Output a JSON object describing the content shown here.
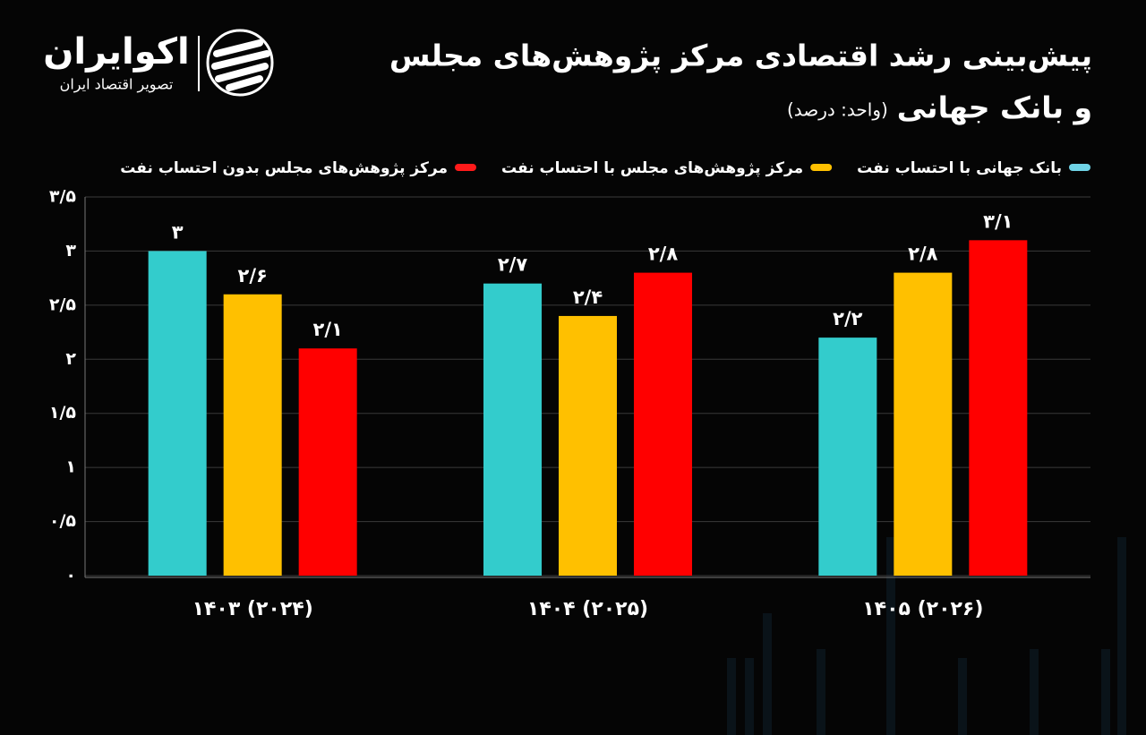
{
  "logo": {
    "name": "اکوایران",
    "tagline": "تصویر اقتصاد ایران"
  },
  "chart_data": {
    "type": "bar",
    "title_lines": [
      "پیش‌بینی رشد اقتصادی مرکز پژوهش‌های مجلس",
      "و بانک جهانی"
    ],
    "unit_note": "(واحد: درصد)",
    "categories": [
      "۱۴۰۳ (۲۰۲۴)",
      "۱۴۰۴ (۲۰۲۵)",
      "۱۴۰۵ (۲۰۲۶)"
    ],
    "series": [
      {
        "name": "بانک جهانی با احتساب نفت",
        "color": "#33cccc",
        "legend_color": "#6fd3e6",
        "values": [
          3,
          2.7,
          2.2
        ],
        "value_labels": [
          "۳",
          "۲/۷",
          "۲/۲"
        ]
      },
      {
        "name": "مرکز پژوهش‌های مجلس با احتساب نفت",
        "color": "#ffc000",
        "legend_color": "#ffc000",
        "values": [
          2.6,
          2.4,
          2.8
        ],
        "value_labels": [
          "۲/۶",
          "۲/۴",
          "۲/۸"
        ]
      },
      {
        "name": "مرکز پژوهش‌های مجلس بدون احتساب نفت",
        "color": "#ff0000",
        "legend_color": "#ff1a1a",
        "values": [
          2.1,
          2.8,
          3.1
        ],
        "value_labels": [
          "۲/۱",
          "۲/۸",
          "۳/۱"
        ]
      }
    ],
    "ylim": [
      0,
      3.5
    ],
    "yticks": [
      {
        "value": 0,
        "label": "۰"
      },
      {
        "value": 0.5,
        "label": "۰/۵"
      },
      {
        "value": 1,
        "label": "۱"
      },
      {
        "value": 1.5,
        "label": "۱/۵"
      },
      {
        "value": 2,
        "label": "۲"
      },
      {
        "value": 2.5,
        "label": "۲/۵"
      },
      {
        "value": 3,
        "label": "۳"
      },
      {
        "value": 3.5,
        "label": "۳/۵"
      }
    ],
    "grid": true
  }
}
